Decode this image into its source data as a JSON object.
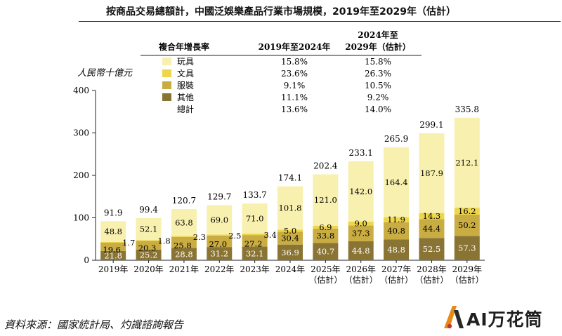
{
  "title": "按商品交易總額計，中國泛娛樂產品行業市場規模，2019年至2029年（估計）",
  "source": "資料來源：國家統計局、灼識諮詢報告",
  "logo_text": "AI万花筒",
  "colors": {
    "toys": "#f8f0ae",
    "stationery": "#edd64a",
    "apparel": "#c9ac42",
    "other": "#8a7434",
    "text": "#111111",
    "rule": "#222222"
  },
  "legend_table": {
    "header": {
      "label": "複合年增長率",
      "col1": "2019年至2024年",
      "col2_line1": "2024年至",
      "col2_line2": "2029年（估計）"
    },
    "rows": [
      {
        "label": "玩具",
        "color": "#f8f0ae",
        "v1": "15.8%",
        "v2": "15.8%"
      },
      {
        "label": "文具",
        "color": "#edd64a",
        "v1": "23.6%",
        "v2": "26.3%"
      },
      {
        "label": "服裝",
        "color": "#c9ac42",
        "v1": "9.1%",
        "v2": "10.5%"
      },
      {
        "label": "其他",
        "color": "#8a7434",
        "v1": "11.1%",
        "v2": "9.2%"
      },
      {
        "label": "總計",
        "color": "",
        "v1": "13.6%",
        "v2": "14.0%"
      }
    ]
  },
  "chart_data": {
    "type": "bar",
    "stacked": true,
    "ylabel": "人民幣十億元",
    "ylim": [
      0,
      400
    ],
    "yticks": [
      0,
      100,
      200,
      300,
      400
    ],
    "grid": false,
    "categories": [
      "2019年",
      "2020年",
      "2021年",
      "2022年",
      "2023年",
      "2024年",
      "2025年",
      "2026年",
      "2027年",
      "2028年",
      "2029年"
    ],
    "category_sublabels": [
      "",
      "",
      "",
      "",
      "",
      "",
      "（估計）",
      "（估計）",
      "（估計）",
      "（估計）",
      "（估計）"
    ],
    "series": [
      {
        "name": "其他",
        "color": "#8a7434",
        "values": [
          21.8,
          25.2,
          28.8,
          31.2,
          32.1,
          36.9,
          40.7,
          44.8,
          48.8,
          52.5,
          57.3
        ]
      },
      {
        "name": "服裝",
        "color": "#c9ac42",
        "values": [
          19.6,
          20.3,
          25.8,
          27.0,
          27.2,
          30.4,
          33.8,
          37.3,
          40.8,
          44.4,
          50.2
        ]
      },
      {
        "name": "文具",
        "color": "#edd64a",
        "values": [
          1.7,
          1.8,
          2.3,
          2.5,
          3.4,
          5.0,
          6.9,
          9.0,
          11.9,
          14.3,
          16.2
        ]
      },
      {
        "name": "玩具",
        "color": "#f8f0ae",
        "values": [
          48.8,
          52.1,
          63.8,
          69.0,
          71.0,
          101.8,
          121.0,
          142.0,
          164.4,
          187.9,
          212.1
        ]
      }
    ],
    "totals": [
      91.9,
      99.4,
      120.7,
      129.7,
      133.7,
      174.1,
      202.4,
      233.1,
      265.9,
      299.1,
      335.8
    ]
  }
}
